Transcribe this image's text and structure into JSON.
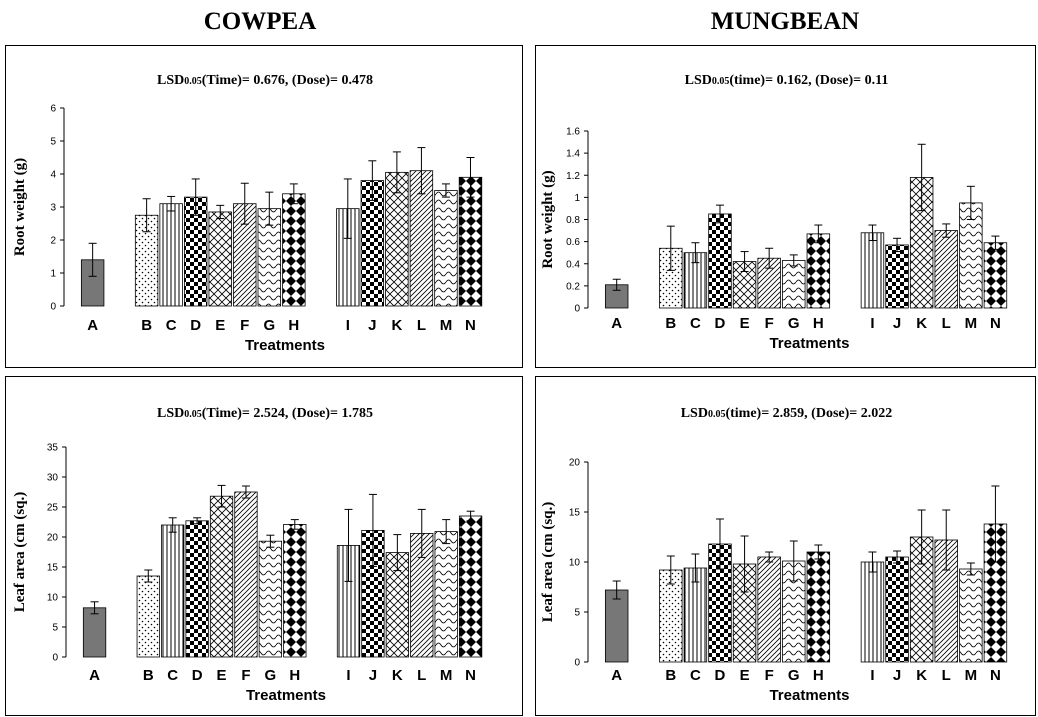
{
  "titles": {
    "left": "COWPEA",
    "right": "MUNGBEAN"
  },
  "chart_data": [
    {
      "type": "bar",
      "crop": "COWPEA",
      "lsd": {
        "prefix": "LSD",
        "sub": "0.05",
        "time_label": "(Time)",
        "time": "0.676",
        "dose_label": "(Dose)",
        "dose": "0.478"
      },
      "ylabel": "Root weight (g)",
      "xlabel": "Treatments",
      "ylim": [
        0,
        6
      ],
      "yticks": [
        0,
        1,
        2,
        3,
        4,
        5,
        6
      ],
      "categories": [
        "A",
        "B",
        "C",
        "D",
        "E",
        "F",
        "G",
        "H",
        "I",
        "J",
        "K",
        "L",
        "M",
        "N"
      ],
      "values": [
        1.4,
        2.75,
        3.1,
        3.3,
        2.85,
        3.1,
        2.95,
        3.4,
        2.95,
        3.8,
        4.05,
        4.1,
        3.5,
        3.9
      ],
      "errors": [
        0.5,
        0.5,
        0.22,
        0.55,
        0.2,
        0.62,
        0.5,
        0.3,
        0.9,
        0.6,
        0.62,
        0.7,
        0.2,
        0.6
      ]
    },
    {
      "type": "bar",
      "crop": "MUNGBEAN",
      "lsd": {
        "prefix": "LSD",
        "sub": "0.05",
        "time_label": "(time)",
        "time": "0.162",
        "dose_label": "(Dose)",
        "dose": "0.11"
      },
      "ylabel": "Root weight (g)",
      "xlabel": "Treatments",
      "ylim": [
        0,
        1.6
      ],
      "yticks": [
        "0",
        "0.2",
        "0.4",
        "0.6",
        "0.8",
        "1",
        "1.2",
        "1.4",
        "1.6"
      ],
      "categories": [
        "A",
        "B",
        "C",
        "D",
        "E",
        "F",
        "G",
        "H",
        "I",
        "J",
        "K",
        "L",
        "M",
        "N"
      ],
      "values": [
        0.21,
        0.54,
        0.5,
        0.85,
        0.42,
        0.45,
        0.43,
        0.67,
        0.68,
        0.57,
        1.18,
        0.7,
        0.95,
        0.59
      ],
      "errors": [
        0.05,
        0.2,
        0.09,
        0.08,
        0.09,
        0.09,
        0.05,
        0.08,
        0.07,
        0.06,
        0.3,
        0.06,
        0.15,
        0.06
      ]
    },
    {
      "type": "bar",
      "crop": "COWPEA",
      "lsd": {
        "prefix": "LSD",
        "sub": "0.05",
        "time_label": "(Time)",
        "time": "2.524",
        "dose_label": "(Dose)",
        "dose": "1.785"
      },
      "ylabel": "Leaf area (cm (sq.)",
      "xlabel": "Treatments",
      "ylim": [
        0,
        35
      ],
      "yticks": [
        0,
        5,
        10,
        15,
        20,
        25,
        30,
        35
      ],
      "categories": [
        "A",
        "B",
        "C",
        "D",
        "E",
        "F",
        "G",
        "H",
        "I",
        "J",
        "K",
        "L",
        "M",
        "N"
      ],
      "values": [
        8.2,
        13.5,
        22.0,
        22.7,
        26.8,
        27.5,
        19.3,
        22.1,
        18.6,
        21.1,
        17.4,
        20.6,
        20.9,
        23.5
      ],
      "errors": [
        1.0,
        1.0,
        1.2,
        0.5,
        1.8,
        1.0,
        1.0,
        0.8,
        6.0,
        6.0,
        3.0,
        4.0,
        2.0,
        0.8
      ]
    },
    {
      "type": "bar",
      "crop": "MUNGBEAN",
      "lsd": {
        "prefix": "LSD",
        "sub": "0.05",
        "time_label": "(time)",
        "time": "2.859",
        "dose_label": "(Dose)",
        "dose": "2.022"
      },
      "ylabel": "Leaf area (cm (sq.)",
      "xlabel": "Treatments",
      "ylim": [
        0,
        20
      ],
      "yticks": [
        0,
        5,
        10,
        15,
        20
      ],
      "categories": [
        "A",
        "B",
        "C",
        "D",
        "E",
        "F",
        "G",
        "H",
        "I",
        "J",
        "K",
        "L",
        "M",
        "N"
      ],
      "values": [
        7.2,
        9.2,
        9.4,
        11.8,
        9.8,
        10.5,
        10.1,
        11.0,
        10.0,
        10.5,
        12.5,
        12.2,
        9.3,
        13.8
      ],
      "errors": [
        0.9,
        1.4,
        1.4,
        2.5,
        2.8,
        0.5,
        2.0,
        0.7,
        1.0,
        0.6,
        2.7,
        3.0,
        0.6,
        3.8
      ]
    }
  ]
}
